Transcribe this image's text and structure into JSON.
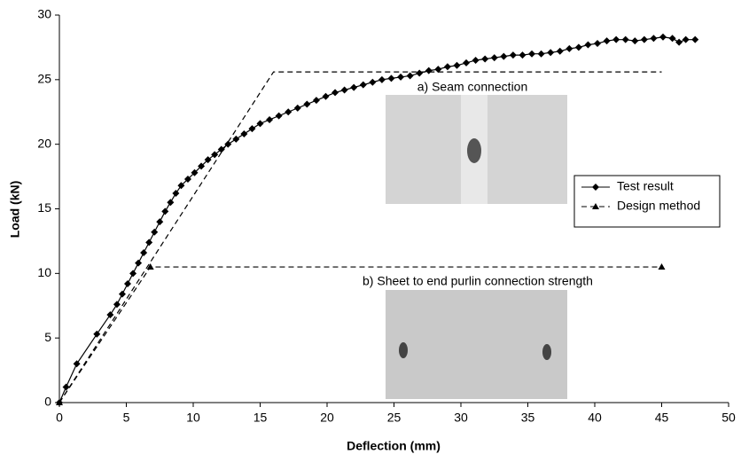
{
  "chart_data": {
    "type": "line",
    "xlabel": "Deflection (mm)",
    "ylabel": "Load (kN)",
    "xlim": [
      0,
      50
    ],
    "xticks": [
      0,
      5,
      10,
      15,
      20,
      25,
      30,
      35,
      40,
      45,
      50
    ],
    "ylim": [
      0,
      30
    ],
    "yticks": [
      0,
      5,
      10,
      15,
      20,
      25,
      30
    ],
    "annotations": [
      "a) Seam connection",
      "b) Sheet to end purlin connection strength"
    ],
    "series": [
      {
        "name": "Test result",
        "color": "#000000",
        "marker": "diamond",
        "dash": "solid",
        "x": [
          0,
          0.5,
          1.3,
          2.8,
          3.8,
          4.3,
          4.7,
          5.1,
          5.5,
          5.9,
          6.3,
          6.7,
          7.1,
          7.5,
          7.9,
          8.3,
          8.7,
          9.1,
          9.6,
          10.1,
          10.6,
          11.1,
          11.6,
          12.1,
          12.6,
          13.2,
          13.8,
          14.4,
          15,
          15.7,
          16.4,
          17.1,
          17.8,
          18.5,
          19.2,
          19.9,
          20.6,
          21.3,
          22,
          22.7,
          23.4,
          24.1,
          24.8,
          25.5,
          26.2,
          26.9,
          27.6,
          28.3,
          29,
          29.7,
          30.4,
          31.1,
          31.8,
          32.5,
          33.2,
          33.9,
          34.6,
          35.3,
          36,
          36.7,
          37.4,
          38.1,
          38.8,
          39.5,
          40.2,
          40.9,
          41.6,
          42.3,
          43,
          43.7,
          44.4,
          45.1,
          45.8,
          46.3,
          46.8,
          47.5
        ],
        "values": [
          0,
          1.2,
          3,
          5.3,
          6.8,
          7.6,
          8.4,
          9.2,
          10,
          10.8,
          11.6,
          12.4,
          13.2,
          14,
          14.8,
          15.5,
          16.2,
          16.8,
          17.3,
          17.8,
          18.3,
          18.8,
          19.2,
          19.6,
          20,
          20.4,
          20.8,
          21.2,
          21.6,
          21.9,
          22.2,
          22.5,
          22.8,
          23.1,
          23.4,
          23.7,
          24,
          24.2,
          24.4,
          24.6,
          24.8,
          25,
          25.1,
          25.2,
          25.3,
          25.5,
          25.7,
          25.8,
          26,
          26.1,
          26.3,
          26.5,
          26.6,
          26.7,
          26.8,
          26.9,
          26.9,
          27,
          27,
          27.1,
          27.2,
          27.4,
          27.5,
          27.7,
          27.8,
          28,
          28.1,
          28.1,
          28,
          28.1,
          28.2,
          28.3,
          28.2,
          27.9,
          28.1,
          28.1
        ]
      },
      {
        "name": "Design method",
        "color": "#000000",
        "marker": "triangle",
        "dash": "dashed",
        "x": [
          0,
          6.8,
          45
        ],
        "values": [
          0,
          10.5,
          10.5
        ]
      },
      {
        "color": "#000000",
        "dash": "dashed",
        "x": [
          0,
          16,
          45
        ],
        "values": [
          0,
          25.6,
          25.6
        ]
      }
    ]
  }
}
